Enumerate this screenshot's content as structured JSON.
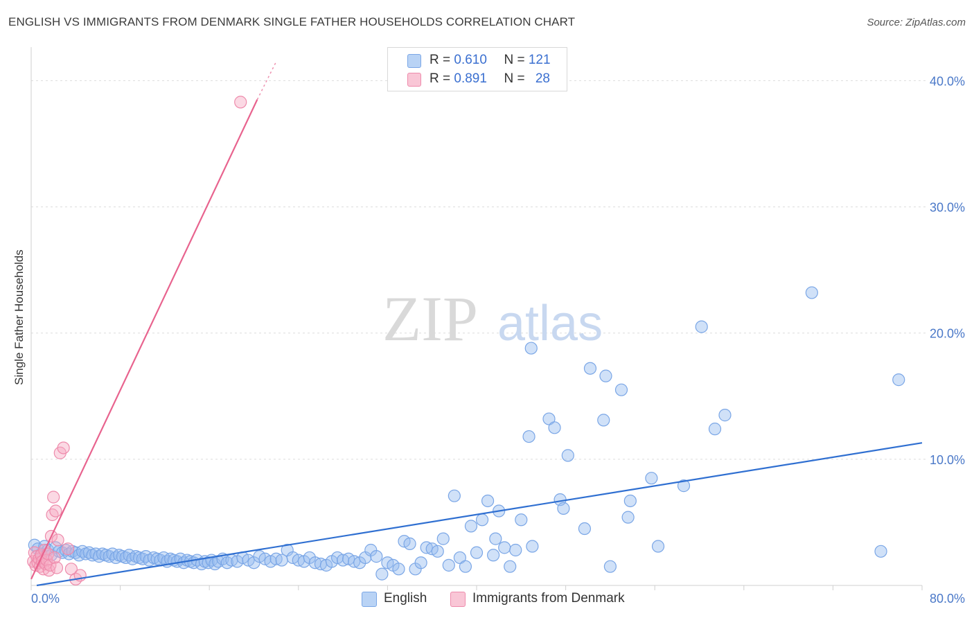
{
  "header": {
    "title": "ENGLISH VS IMMIGRANTS FROM DENMARK SINGLE FATHER HOUSEHOLDS CORRELATION CHART",
    "source": "Source: ZipAtlas.com"
  },
  "watermark": {
    "zip": "ZIP",
    "atlas": "atlas"
  },
  "legend": {
    "rows": [
      {
        "r_label": "R = ",
        "r_value": "0.610",
        "n_label": "N = ",
        "n_value": "121",
        "color": "#a9c8f2"
      },
      {
        "r_label": "R = ",
        "r_value": "0.891",
        "n_label": "N = ",
        "n_value": "28",
        "color": "#f6b3c8"
      }
    ],
    "bottom": [
      "English",
      "Immigrants from Denmark"
    ]
  },
  "colors": {
    "english_fill": "rgba(150,188,240,0.45)",
    "english_stroke": "#7aa6e6",
    "english_line": "#2f6fd1",
    "denmark_fill": "rgba(246,170,196,0.45)",
    "denmark_stroke": "#ee8aab",
    "denmark_line": "#e8638e",
    "axis_label": "#4a78c8",
    "grid": "#dcdcdc"
  },
  "chart_data": {
    "type": "scatter",
    "title": "ENGLISH VS IMMIGRANTS FROM DENMARK SINGLE FATHER HOUSEHOLDS CORRELATION CHART",
    "xlabel": "",
    "ylabel": "Single Father Households",
    "xlim": [
      0,
      80
    ],
    "ylim": [
      0,
      42
    ],
    "x_tick_labels": [
      "0.0%",
      "80.0%"
    ],
    "y_ticks": [
      10,
      20,
      30,
      40
    ],
    "y_tick_labels": [
      "10.0%",
      "20.0%",
      "30.0%",
      "40.0%"
    ],
    "grid": "horizontal dashed",
    "legend_position": "top-center",
    "series": [
      {
        "name": "English",
        "r": 0.61,
        "n": 121,
        "trend": {
          "x": [
            0.5,
            80
          ],
          "y": [
            0.0,
            11.3
          ]
        },
        "points": [
          [
            0.3,
            3.2
          ],
          [
            0.6,
            2.9
          ],
          [
            0.9,
            2.5
          ],
          [
            1.2,
            3.1
          ],
          [
            1.5,
            2.8
          ],
          [
            1.8,
            2.4
          ],
          [
            2.2,
            3.0
          ],
          [
            2.5,
            2.7
          ],
          [
            2.8,
            2.6
          ],
          [
            3.1,
            2.8
          ],
          [
            3.4,
            2.5
          ],
          [
            3.7,
            2.7
          ],
          [
            4.0,
            2.6
          ],
          [
            4.3,
            2.4
          ],
          [
            4.6,
            2.7
          ],
          [
            4.9,
            2.5
          ],
          [
            5.2,
            2.6
          ],
          [
            5.5,
            2.4
          ],
          [
            5.8,
            2.5
          ],
          [
            6.1,
            2.3
          ],
          [
            6.4,
            2.5
          ],
          [
            6.7,
            2.4
          ],
          [
            7.0,
            2.3
          ],
          [
            7.3,
            2.5
          ],
          [
            7.6,
            2.2
          ],
          [
            7.9,
            2.4
          ],
          [
            8.2,
            2.3
          ],
          [
            8.5,
            2.2
          ],
          [
            8.8,
            2.4
          ],
          [
            9.1,
            2.1
          ],
          [
            9.4,
            2.3
          ],
          [
            9.7,
            2.2
          ],
          [
            10.0,
            2.1
          ],
          [
            10.3,
            2.3
          ],
          [
            10.6,
            2.0
          ],
          [
            11.0,
            2.2
          ],
          [
            11.3,
            2.1
          ],
          [
            11.6,
            2.0
          ],
          [
            11.9,
            2.2
          ],
          [
            12.2,
            1.9
          ],
          [
            12.5,
            2.1
          ],
          [
            12.8,
            2.0
          ],
          [
            13.1,
            1.9
          ],
          [
            13.4,
            2.1
          ],
          [
            13.7,
            1.8
          ],
          [
            14.0,
            2.0
          ],
          [
            14.3,
            1.9
          ],
          [
            14.6,
            1.8
          ],
          [
            14.9,
            2.0
          ],
          [
            15.3,
            1.7
          ],
          [
            15.6,
            1.9
          ],
          [
            15.9,
            1.8
          ],
          [
            16.2,
            2.0
          ],
          [
            16.5,
            1.7
          ],
          [
            16.8,
            1.9
          ],
          [
            17.2,
            2.1
          ],
          [
            17.6,
            1.8
          ],
          [
            18.0,
            2.0
          ],
          [
            18.5,
            1.9
          ],
          [
            19.0,
            2.2
          ],
          [
            19.5,
            2.0
          ],
          [
            20.0,
            1.8
          ],
          [
            20.5,
            2.3
          ],
          [
            21.0,
            2.1
          ],
          [
            21.5,
            1.9
          ],
          [
            22.0,
            2.1
          ],
          [
            22.5,
            2.0
          ],
          [
            23.0,
            2.8
          ],
          [
            23.5,
            2.2
          ],
          [
            24.0,
            2.0
          ],
          [
            24.5,
            1.9
          ],
          [
            25.0,
            2.2
          ],
          [
            25.5,
            1.8
          ],
          [
            26.0,
            1.7
          ],
          [
            26.5,
            1.6
          ],
          [
            27.0,
            1.9
          ],
          [
            27.5,
            2.2
          ],
          [
            28.0,
            2.0
          ],
          [
            28.5,
            2.1
          ],
          [
            29.0,
            1.9
          ],
          [
            29.5,
            1.8
          ],
          [
            30.0,
            2.2
          ],
          [
            30.5,
            2.8
          ],
          [
            31.0,
            2.3
          ],
          [
            31.5,
            0.9
          ],
          [
            32.0,
            1.8
          ],
          [
            32.5,
            1.6
          ],
          [
            33.0,
            1.3
          ],
          [
            33.5,
            3.5
          ],
          [
            34.0,
            3.3
          ],
          [
            34.5,
            1.3
          ],
          [
            35.0,
            1.8
          ],
          [
            35.5,
            3.0
          ],
          [
            36.0,
            2.9
          ],
          [
            36.5,
            2.7
          ],
          [
            37.0,
            3.7
          ],
          [
            37.5,
            1.6
          ],
          [
            38.0,
            7.1
          ],
          [
            38.5,
            2.2
          ],
          [
            39.0,
            1.5
          ],
          [
            39.5,
            4.7
          ],
          [
            40.0,
            2.6
          ],
          [
            40.5,
            5.2
          ],
          [
            41.0,
            6.7
          ],
          [
            41.5,
            2.4
          ],
          [
            41.7,
            3.7
          ],
          [
            42.0,
            5.9
          ],
          [
            42.5,
            3.0
          ],
          [
            43.0,
            1.5
          ],
          [
            43.5,
            2.8
          ],
          [
            44.0,
            5.2
          ],
          [
            45.0,
            3.1
          ],
          [
            44.7,
            11.8
          ],
          [
            44.9,
            18.8
          ],
          [
            46.5,
            13.2
          ],
          [
            47.0,
            12.5
          ],
          [
            47.5,
            6.8
          ],
          [
            47.8,
            6.1
          ],
          [
            48.2,
            10.3
          ],
          [
            49.7,
            4.5
          ],
          [
            50.2,
            17.2
          ],
          [
            51.4,
            13.1
          ],
          [
            51.6,
            16.6
          ],
          [
            52.0,
            1.5
          ],
          [
            53.0,
            15.5
          ],
          [
            53.6,
            5.4
          ],
          [
            53.8,
            6.7
          ],
          [
            55.7,
            8.5
          ],
          [
            56.3,
            3.1
          ],
          [
            58.6,
            7.9
          ],
          [
            61.4,
            12.4
          ],
          [
            62.3,
            13.5
          ],
          [
            60.2,
            20.5
          ],
          [
            70.1,
            23.2
          ],
          [
            76.3,
            2.7
          ],
          [
            77.9,
            16.3
          ]
        ]
      },
      {
        "name": "Immigrants from Denmark",
        "r": 0.891,
        "n": 28,
        "trend": {
          "x": [
            0.0,
            20.3
          ],
          "y": [
            0.5,
            38.5
          ]
        },
        "trend_dashed": {
          "x": [
            20.3,
            22.0
          ],
          "y": [
            38.5,
            41.5
          ]
        },
        "points": [
          [
            0.2,
            1.9
          ],
          [
            0.3,
            2.6
          ],
          [
            0.4,
            1.6
          ],
          [
            0.5,
            2.3
          ],
          [
            0.6,
            1.8
          ],
          [
            0.7,
            2.1
          ],
          [
            0.8,
            1.5
          ],
          [
            0.9,
            2.4
          ],
          [
            1.0,
            1.9
          ],
          [
            1.1,
            1.3
          ],
          [
            1.2,
            2.8
          ],
          [
            1.3,
            1.7
          ],
          [
            1.4,
            2.0
          ],
          [
            1.5,
            2.5
          ],
          [
            1.6,
            1.2
          ],
          [
            1.7,
            1.6
          ],
          [
            1.8,
            3.9
          ],
          [
            1.9,
            5.6
          ],
          [
            2.0,
            7.0
          ],
          [
            2.1,
            2.2
          ],
          [
            2.2,
            5.9
          ],
          [
            2.3,
            1.4
          ],
          [
            2.4,
            3.6
          ],
          [
            2.6,
            10.5
          ],
          [
            2.9,
            10.9
          ],
          [
            3.3,
            2.9
          ],
          [
            3.6,
            1.3
          ],
          [
            4.0,
            0.5
          ],
          [
            4.4,
            0.8
          ],
          [
            18.8,
            38.3
          ]
        ]
      }
    ]
  }
}
